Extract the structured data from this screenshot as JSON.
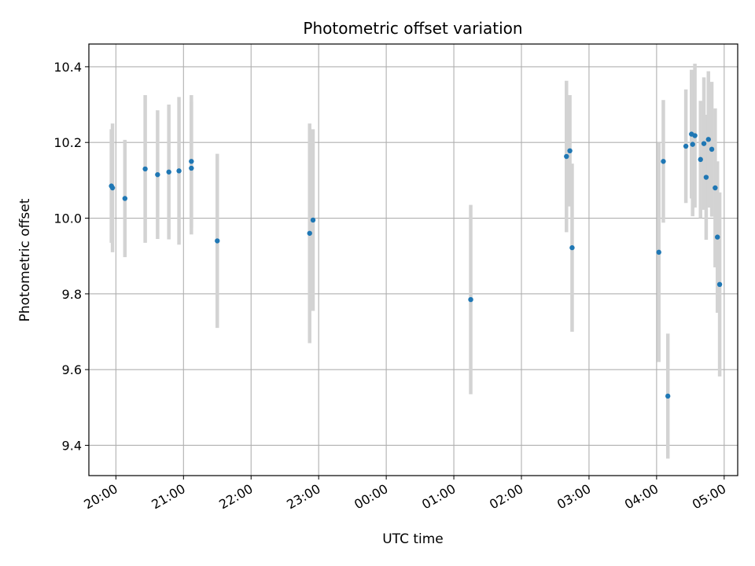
{
  "chart_data": {
    "type": "scatter",
    "title": "Photometric offset variation",
    "xlabel": "UTC time",
    "ylabel": "Photometric offset",
    "x_tick_labels": [
      "20:00",
      "21:00",
      "22:00",
      "23:00",
      "00:00",
      "01:00",
      "02:00",
      "03:00",
      "04:00",
      "05:00"
    ],
    "y_tick_labels": [
      "9.4",
      "9.6",
      "9.8",
      "10.0",
      "10.2",
      "10.4"
    ],
    "xlim": [
      "19:36",
      "05:12"
    ],
    "ylim": [
      9.32,
      10.46
    ],
    "grid": true,
    "point_color": "#1f77b4",
    "errorbar_color": "#d3d3d3",
    "grid_color": "#b0b0b0",
    "points": [
      {
        "x": "19:56",
        "y": 10.085,
        "yerr": 0.15
      },
      {
        "x": "19:57",
        "y": 10.08,
        "yerr": 0.17
      },
      {
        "x": "20:08",
        "y": 10.052,
        "yerr": 0.155
      },
      {
        "x": "20:26",
        "y": 10.13,
        "yerr": 0.195
      },
      {
        "x": "20:37",
        "y": 10.115,
        "yerr": 0.17
      },
      {
        "x": "20:47",
        "y": 10.122,
        "yerr": 0.178
      },
      {
        "x": "20:56",
        "y": 10.125,
        "yerr": 0.195
      },
      {
        "x": "21:07",
        "y": 10.15,
        "yerr": 0.175
      },
      {
        "x": "21:07",
        "y": 10.132,
        "yerr": 0.175
      },
      {
        "x": "21:30",
        "y": 9.94,
        "yerr": 0.23
      },
      {
        "x": "22:52",
        "y": 9.96,
        "yerr": 0.29
      },
      {
        "x": "22:55",
        "y": 9.995,
        "yerr": 0.24
      },
      {
        "x": "01:15",
        "y": 9.785,
        "yerr": 0.25
      },
      {
        "x": "02:40",
        "y": 10.163,
        "yerr": 0.2
      },
      {
        "x": "02:43",
        "y": 10.178,
        "yerr": 0.147
      },
      {
        "x": "02:45",
        "y": 9.922,
        "yerr": 0.222
      },
      {
        "x": "04:02",
        "y": 9.91,
        "yerr": 0.29
      },
      {
        "x": "04:06",
        "y": 10.15,
        "yerr": 0.162
      },
      {
        "x": "04:10",
        "y": 9.53,
        "yerr": 0.165
      },
      {
        "x": "04:26",
        "y": 10.19,
        "yerr": 0.15
      },
      {
        "x": "04:31",
        "y": 10.222,
        "yerr": 0.17
      },
      {
        "x": "04:32",
        "y": 10.195,
        "yerr": 0.19
      },
      {
        "x": "04:34",
        "y": 10.218,
        "yerr": 0.19
      },
      {
        "x": "04:39",
        "y": 10.155,
        "yerr": 0.155
      },
      {
        "x": "04:42",
        "y": 10.197,
        "yerr": 0.175
      },
      {
        "x": "04:44",
        "y": 10.108,
        "yerr": 0.165
      },
      {
        "x": "04:46",
        "y": 10.208,
        "yerr": 0.18
      },
      {
        "x": "04:49",
        "y": 10.182,
        "yerr": 0.178
      },
      {
        "x": "04:52",
        "y": 10.08,
        "yerr": 0.21
      },
      {
        "x": "04:54",
        "y": 9.95,
        "yerr": 0.2
      },
      {
        "x": "04:56",
        "y": 9.825,
        "yerr": 0.243
      }
    ]
  }
}
